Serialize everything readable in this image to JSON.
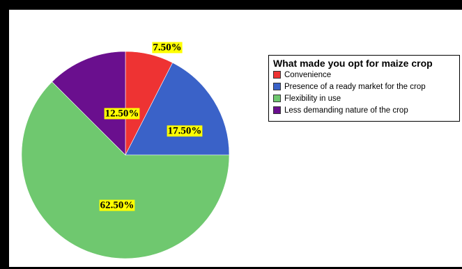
{
  "chart_data": {
    "type": "pie",
    "title": "",
    "legend_title": "What made you opt for maize crop",
    "legend_position": "right",
    "categories": [
      "Convenience",
      "Presence of a ready market for the crop",
      "Flexibility in use",
      "Less demanding nature of the crop"
    ],
    "values": [
      7.5,
      17.5,
      62.5,
      12.5
    ],
    "labels": [
      "7.50%",
      "17.50%",
      "62.50%",
      "12.50%"
    ],
    "colors": [
      "#ee3333",
      "#3a62c8",
      "#6fc86f",
      "#6a0f8e"
    ],
    "label_background": "#ffff00"
  }
}
